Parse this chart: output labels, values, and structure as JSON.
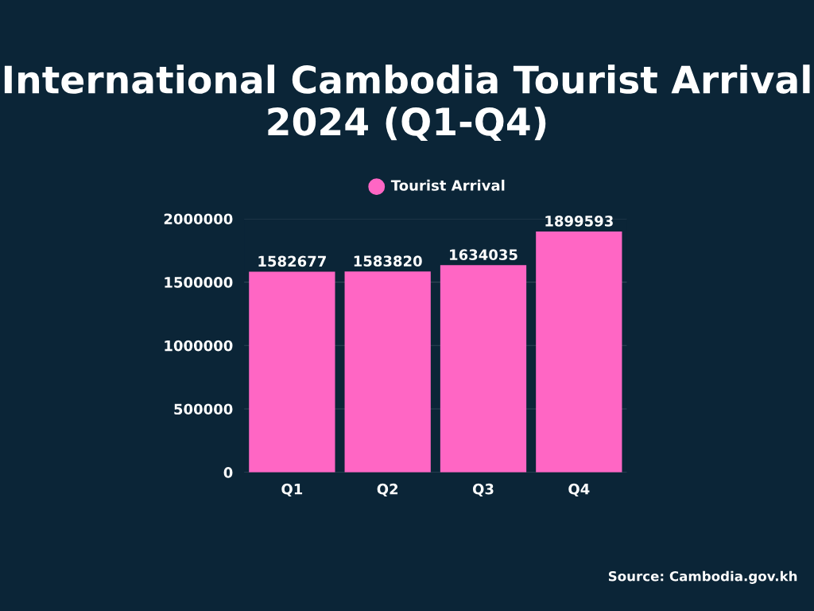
{
  "chart_data": {
    "type": "bar",
    "title": "International Cambodia Tourist Arrival 2024 (Q1-Q4)",
    "categories": [
      "Q1",
      "Q2",
      "Q3",
      "Q4"
    ],
    "series": [
      {
        "name": "Tourist Arrival",
        "color": "#ff66c4",
        "values": [
          1582677,
          1583820,
          1634035,
          1899593
        ]
      }
    ],
    "ylim": [
      0,
      2000000
    ],
    "yticks": [
      0,
      500000,
      1000000,
      1500000,
      2000000
    ],
    "grid": "y",
    "legend": "top",
    "data_labels": true,
    "annotations": [
      "Source: Cambodia.gov.kh"
    ]
  }
}
